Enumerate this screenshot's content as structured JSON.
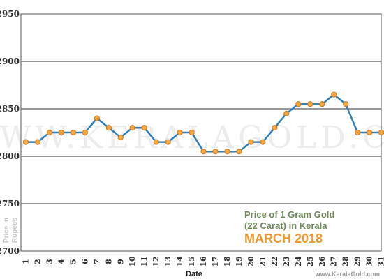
{
  "chart_data": {
    "type": "line",
    "title": "MARCH 2018",
    "subtitle_line1": "Price of 1 Gram Gold",
    "subtitle_line2": "(22 Carat) in Kerala",
    "xlabel": "Date",
    "ylabel_line1": "Price in",
    "ylabel_line2": "Rupees",
    "watermark": "WWW.KERALAGOLD.COM",
    "credit": "www.KeralaGold.com",
    "x": [
      1,
      2,
      3,
      4,
      5,
      6,
      7,
      8,
      9,
      10,
      11,
      12,
      13,
      14,
      15,
      16,
      17,
      18,
      19,
      20,
      21,
      22,
      23,
      24,
      25,
      26,
      27,
      28,
      29,
      30,
      31
    ],
    "x_tick_labels": [
      "1",
      "2",
      "3",
      "4",
      "5",
      "6",
      "7",
      "8",
      "9",
      "10",
      "11",
      "12",
      "13",
      "14",
      "15",
      "16",
      "17",
      "18",
      "19",
      "20",
      "21",
      "22",
      "23",
      "24",
      "25",
      "26",
      "27",
      "28",
      "29",
      "30",
      "31"
    ],
    "series": [
      {
        "values": [
          2815,
          2815,
          2825,
          2825,
          2825,
          2825,
          2840,
          2830,
          2820,
          2830,
          2830,
          2815,
          2815,
          2825,
          2825,
          2805,
          2805,
          2805,
          2805,
          2815,
          2815,
          2830,
          2845,
          2855,
          2855,
          2855,
          2865,
          2855,
          2825,
          2825,
          2825
        ]
      }
    ],
    "ylim": [
      2700,
      2950
    ],
    "y_ticks": [
      2700,
      2750,
      2800,
      2850,
      2900,
      2950
    ],
    "y_tick_labels": [
      "2700",
      "2750",
      "2800",
      "2850",
      "2900",
      "2950"
    ],
    "grid": true,
    "line_color": "#2f7fb8",
    "marker_color": "#f4a540",
    "marker_edge_color": "#c87820"
  }
}
